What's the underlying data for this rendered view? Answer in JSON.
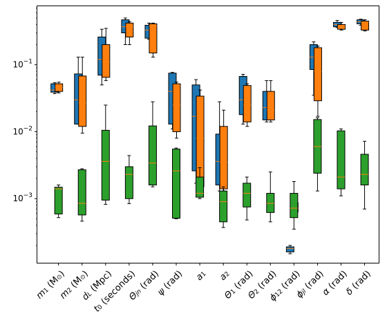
{
  "chart_data": {
    "type": "box",
    "yscale": "log",
    "ylim": [
      0.00011,
      0.75
    ],
    "y_ticks": [
      {
        "value": 0.001,
        "label_base": "10",
        "label_exp": "−3"
      },
      {
        "value": 0.01,
        "label_base": "10",
        "label_exp": "−2"
      },
      {
        "value": 0.1,
        "label_base": "10",
        "label_exp": "−1"
      }
    ],
    "categories": [
      {
        "label": "m",
        "sub": "1",
        "rest": " (M",
        "rest_sub": "⊙",
        "tail": ")"
      },
      {
        "label": "m",
        "sub": "2",
        "rest": " (M",
        "rest_sub": "⊙",
        "tail": ")"
      },
      {
        "label": "d",
        "sub": "L",
        "rest": " (Mpc)",
        "rest_sub": "",
        "tail": ""
      },
      {
        "label": "t",
        "sub": "0",
        "rest": " (seconds)",
        "rest_sub": "",
        "tail": ""
      },
      {
        "label": "Θ",
        "sub": "jn",
        "rest": " (rad)",
        "rest_sub": "",
        "tail": ""
      },
      {
        "label": "ψ",
        "sub": "",
        "rest": " (rad)",
        "rest_sub": "",
        "tail": ""
      },
      {
        "label": "a",
        "sub": "1",
        "rest": "",
        "rest_sub": "",
        "tail": ""
      },
      {
        "label": "a",
        "sub": "2",
        "rest": "",
        "rest_sub": "",
        "tail": ""
      },
      {
        "label": "Θ",
        "sub": "1",
        "rest": " (rad)",
        "rest_sub": "",
        "tail": ""
      },
      {
        "label": "Θ",
        "sub": "2",
        "rest": " (rad)",
        "rest_sub": "",
        "tail": ""
      },
      {
        "label": "ϕ",
        "sub": "12",
        "rest": " (rad)",
        "rest_sub": "",
        "tail": ""
      },
      {
        "label": "ϕ",
        "sub": "jl",
        "rest": " (rad)",
        "rest_sub": "",
        "tail": ""
      },
      {
        "label": "α",
        "sub": "",
        "rest": " (rad)",
        "rest_sub": "",
        "tail": ""
      },
      {
        "label": "δ",
        "sub": "",
        "rest": " (rad)",
        "rest_sub": "",
        "tail": ""
      }
    ],
    "series": [
      {
        "color": "#1f77b4",
        "boxes": [
          {
            "category": 0,
            "whislo": 0.037,
            "q1": 0.039,
            "median": 0.042,
            "q3": 0.052,
            "whishi": 0.054
          },
          {
            "category": 1,
            "whislo": 0.013,
            "q1": 0.013,
            "median": 0.03,
            "q3": 0.073,
            "whishi": 0.13
          },
          {
            "category": 2,
            "whislo": 0.05,
            "q1": 0.07,
            "median": 0.12,
            "q3": 0.26,
            "whishi": 0.34
          },
          {
            "category": 3,
            "whislo": 0.2,
            "q1": 0.3,
            "median": 0.37,
            "q3": 0.47,
            "whishi": 0.5
          },
          {
            "category": 4,
            "whislo": 0.24,
            "q1": 0.25,
            "median": 0.33,
            "q3": 0.39,
            "whishi": 0.42
          },
          {
            "category": 5,
            "whislo": 0.011,
            "q1": 0.013,
            "median": 0.04,
            "q3": 0.075,
            "whishi": 0.077
          },
          {
            "category": 6,
            "whislo": 0.0017,
            "q1": 0.0026,
            "median": 0.017,
            "q3": 0.05,
            "whishi": 0.06
          },
          {
            "category": 7,
            "whislo": 0.0013,
            "q1": 0.0016,
            "median": 0.0036,
            "q3": 0.0092,
            "whishi": 0.028
          },
          {
            "category": 8,
            "whislo": 0.013,
            "q1": 0.018,
            "median": 0.03,
            "q3": 0.067,
            "whishi": 0.072
          },
          {
            "category": 9,
            "whislo": 0.014,
            "q1": 0.015,
            "median": 0.023,
            "q3": 0.04,
            "whishi": 0.058
          },
          {
            "category": 10,
            "whislo": 0.00015,
            "q1": 0.00016,
            "median": 0.00018,
            "q3": 0.00019,
            "whishi": 0.0002
          },
          {
            "category": 11,
            "whislo": 0.035,
            "q1": 0.085,
            "median": 0.13,
            "q3": 0.2,
            "whishi": 0.22
          },
          {
            "category": 12,
            "whislo": 0.36,
            "q1": 0.37,
            "median": 0.4,
            "q3": 0.43,
            "whishi": 0.46
          },
          {
            "category": 13,
            "whislo": 0.39,
            "q1": 0.41,
            "median": 0.44,
            "q3": 0.47,
            "whishi": 0.48
          }
        ]
      },
      {
        "color": "#ff7f0e",
        "boxes": [
          {
            "category": 0,
            "whislo": 0.038,
            "q1": 0.04,
            "median": 0.046,
            "q3": 0.052,
            "whishi": 0.055
          },
          {
            "category": 1,
            "whislo": 0.0095,
            "q1": 0.012,
            "median": 0.027,
            "q3": 0.068,
            "whishi": 0.13
          },
          {
            "category": 2,
            "whislo": 0.058,
            "q1": 0.065,
            "median": 0.11,
            "q3": 0.2,
            "whishi": 0.35
          },
          {
            "category": 3,
            "whislo": 0.2,
            "q1": 0.26,
            "median": 0.37,
            "q3": 0.42,
            "whishi": 0.44
          },
          {
            "category": 4,
            "whislo": 0.13,
            "q1": 0.15,
            "median": 0.38,
            "q3": 0.41,
            "whishi": 0.42
          },
          {
            "category": 5,
            "whislo": 0.008,
            "q1": 0.01,
            "median": 0.025,
            "q3": 0.052,
            "whishi": 0.055
          },
          {
            "category": 6,
            "whislo": 0.0011,
            "q1": 0.0015,
            "median": 0.008,
            "q3": 0.034,
            "whishi": 0.042
          },
          {
            "category": 7,
            "whislo": 0.0013,
            "q1": 0.0014,
            "median": 0.0035,
            "q3": 0.012,
            "whishi": 0.021
          },
          {
            "category": 8,
            "whislo": 0.012,
            "q1": 0.014,
            "median": 0.025,
            "q3": 0.049,
            "whishi": 0.052
          },
          {
            "category": 9,
            "whislo": 0.014,
            "q1": 0.015,
            "median": 0.021,
            "q3": 0.04,
            "whishi": 0.058
          },
          {
            "category": 10,
            "whislo": 0.00057,
            "q1": 0.00063,
            "median": 0.00075,
            "q3": 0.00087,
            "whishi": 0.00095
          },
          {
            "category": 11,
            "whislo": 0.017,
            "q1": 0.029,
            "median": 0.08,
            "q3": 0.18,
            "whishi": 0.19
          },
          {
            "category": 12,
            "whislo": 0.33,
            "q1": 0.34,
            "median": 0.37,
            "q3": 0.4,
            "whishi": 0.43
          },
          {
            "category": 13,
            "whislo": 0.32,
            "q1": 0.33,
            "median": 0.43,
            "q3": 0.45,
            "whishi": 0.47
          }
        ]
      },
      {
        "color": "#2ca02c",
        "boxes": [
          {
            "category": 0,
            "whislo": 0.00052,
            "q1": 0.00059,
            "median": 0.0014,
            "q3": 0.00148,
            "whishi": 0.0016
          },
          {
            "category": 1,
            "whislo": 0.00046,
            "q1": 0.00057,
            "median": 0.00085,
            "q3": 0.0027,
            "whishi": 0.0028
          },
          {
            "category": 2,
            "whislo": 0.00082,
            "q1": 0.00095,
            "median": 0.0036,
            "q3": 0.0105,
            "whishi": 0.025
          },
          {
            "category": 3,
            "whislo": 0.00084,
            "q1": 0.001,
            "median": 0.0023,
            "q3": 0.003,
            "whishi": 0.0044
          },
          {
            "category": 4,
            "whislo": 0.0015,
            "q1": 0.0016,
            "median": 0.0034,
            "q3": 0.0122,
            "whishi": 0.028
          },
          {
            "category": 5,
            "whislo": 0.0005,
            "q1": 0.00051,
            "median": 0.0026,
            "q3": 0.0055,
            "whishi": 0.0057
          },
          {
            "category": 6,
            "whislo": 0.001,
            "q1": 0.00105,
            "median": 0.0012,
            "q3": 0.0021,
            "whishi": 0.0029
          },
          {
            "category": 7,
            "whislo": 0.00037,
            "q1": 0.00045,
            "median": 0.0009,
            "q3": 0.0013,
            "whishi": 0.0015
          },
          {
            "category": 8,
            "whislo": 0.00048,
            "q1": 0.00075,
            "median": 0.0012,
            "q3": 0.0017,
            "whishi": 0.0021
          },
          {
            "category": 9,
            "whislo": 0.00045,
            "q1": 0.00062,
            "median": 0.00085,
            "q3": 0.0012,
            "whishi": 0.0025
          },
          {
            "category": 10,
            "whislo": 0.00035,
            "q1": 0.00052,
            "median": 0.00072,
            "q3": 0.0012,
            "whishi": 0.0018
          },
          {
            "category": 11,
            "whislo": 0.0013,
            "q1": 0.0024,
            "median": 0.006,
            "q3": 0.0152,
            "whishi": 0.0162
          },
          {
            "category": 12,
            "whislo": 0.0011,
            "q1": 0.0014,
            "median": 0.0021,
            "q3": 0.0103,
            "whishi": 0.011
          },
          {
            "category": 13,
            "whislo": 0.0007,
            "q1": 0.0016,
            "median": 0.0023,
            "q3": 0.0046,
            "whishi": 0.0072
          }
        ]
      }
    ],
    "median_color": "#ff7f0e",
    "grid": false,
    "legend": "none"
  }
}
